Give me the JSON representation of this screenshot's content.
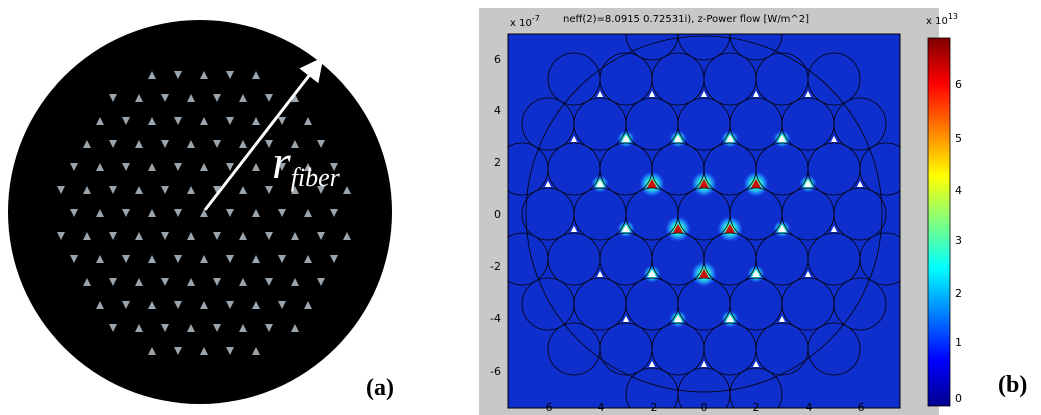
{
  "panel_a": {
    "radius_label_main": "r",
    "radius_label_sub": "fiber",
    "panel_letter": "(a)"
  },
  "panel_b": {
    "panel_letter": "(b)",
    "scale_label": "x 10",
    "scale_exponent": "-7",
    "title": "neff(2)=8.0915 0.72531i),  z-Power flow [W/m^2]",
    "colorbar_scale_label": "x 10",
    "colorbar_scale_exponent": "13",
    "x_ticks": [
      "-6",
      "-4",
      "-2",
      "0",
      "2",
      "4",
      "6"
    ],
    "y_ticks": [
      "6",
      "4",
      "2",
      "0",
      "-2",
      "-4",
      "-6"
    ],
    "colorbar_ticks": [
      "6",
      "5",
      "4",
      "3",
      "2",
      "1",
      "0"
    ]
  }
}
